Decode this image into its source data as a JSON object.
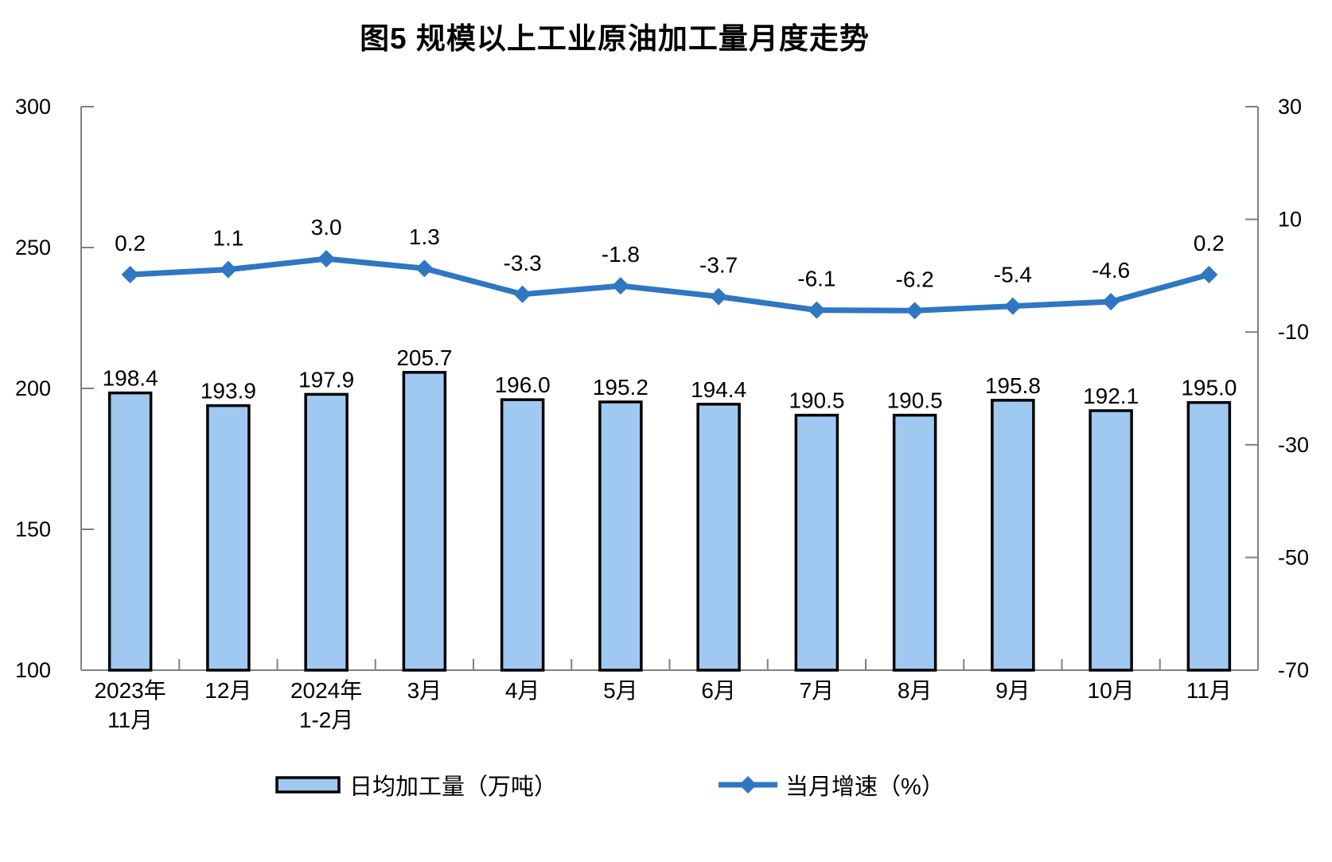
{
  "title": "图5  规模以上工业原油加工量月度走势",
  "legend": {
    "bar_label": "日均加工量（万吨）",
    "line_label": "当月增速（%）"
  },
  "chart_data": {
    "type": "bar+line combo",
    "title": "图5  规模以上工业原油加工量月度走势",
    "categories": [
      "2023年\n11月",
      "12月",
      "2024年\n1-2月",
      "3月",
      "4月",
      "5月",
      "6月",
      "7月",
      "8月",
      "9月",
      "10月",
      "11月"
    ],
    "series": [
      {
        "name": "日均加工量（万吨）",
        "type": "bar",
        "axis": "left",
        "values": [
          198.4,
          193.9,
          197.9,
          205.7,
          196.0,
          195.2,
          194.4,
          190.5,
          190.5,
          195.8,
          192.1,
          195.0
        ]
      },
      {
        "name": "当月增速（%）",
        "type": "line",
        "axis": "right",
        "values": [
          0.2,
          1.1,
          3.0,
          1.3,
          -3.3,
          -1.8,
          -3.7,
          -6.1,
          -6.2,
          -5.4,
          -4.6,
          0.2
        ]
      }
    ],
    "left_axis": {
      "min": 100,
      "max": 300,
      "ticks": [
        300,
        250,
        200,
        150,
        100
      ]
    },
    "right_axis": {
      "min": -70,
      "max": 30,
      "ticks": [
        30,
        10,
        -10,
        -30,
        -50,
        -70
      ]
    },
    "grid": "off",
    "legend_position": "bottom",
    "colors": {
      "bar_fill": "#9FC9F1",
      "bar_stroke": "#000000",
      "line": "#2F76C3",
      "axis": "#808080",
      "text": "#000000"
    }
  }
}
